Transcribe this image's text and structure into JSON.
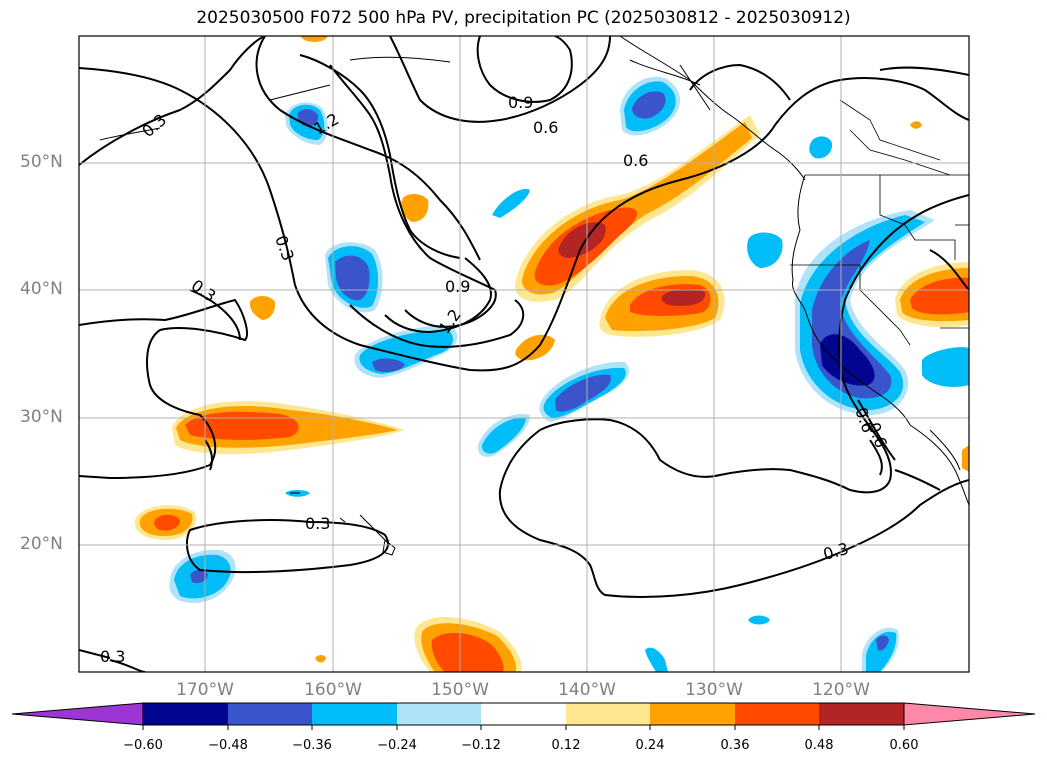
{
  "title": "2025030500 F072 500 hPa PV, precipitation PC (2025030812 - 2025030912)",
  "lat_labels": [
    "50°N",
    "40°N",
    "30°N",
    "20°N"
  ],
  "lon_labels": [
    "170°W",
    "160°W",
    "150°W",
    "140°W",
    "130°W",
    "120°W"
  ],
  "contour_labels": [
    "0.3",
    "1.2",
    "0.9",
    "0.6",
    "0.6",
    "0.3",
    "0.3",
    "0.9",
    "1.2",
    "0.3",
    "0.3",
    "0.3",
    "0.6",
    "0.6"
  ],
  "colorbar": {
    "ticks": [
      "−0.60",
      "−0.48",
      "−0.36",
      "−0.24",
      "−0.12",
      "0.12",
      "0.24",
      "0.36",
      "0.48",
      "0.60"
    ],
    "colors": [
      "#9c35d3",
      "#020590",
      "#3a55cc",
      "#00bcf7",
      "#afe3fa",
      "#ffffff",
      "#ffe791",
      "#ffa100",
      "#ff4a00",
      "#b32425",
      "#ff88a8"
    ]
  }
}
